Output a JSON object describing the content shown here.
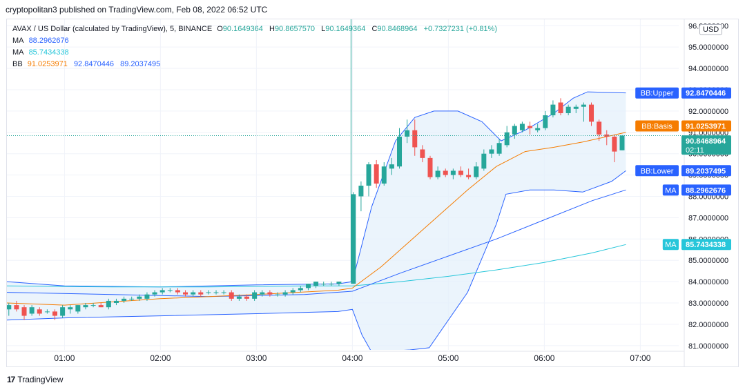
{
  "header": {
    "published_by": "cryptopolitan3 published on TradingView.com, Feb 08, 2022 06:52 UTC"
  },
  "legend": {
    "symbol": "AVAX / US Dollar (calculated by TradingView), 5, BINANCE",
    "o_label": "O",
    "o": "90.1649364",
    "h_label": "H",
    "h": "90.8657570",
    "l_label": "L",
    "l": "90.1649364",
    "c_label": "C",
    "c": "90.8468964",
    "change": "+0.7327231 (+0.81%)",
    "ma1_label": "MA",
    "ma1": "88.2962676",
    "ma2_label": "MA",
    "ma2": "85.7434338",
    "bb_label": "BB",
    "bb_basis": "91.0253971",
    "bb_upper": "92.8470446",
    "bb_lower": "89.2037495"
  },
  "currency": "USD",
  "footer": {
    "logo": "17",
    "brand": "TradingView"
  },
  "colors": {
    "up": "#26a69a",
    "down": "#ef5350",
    "bb_line": "#2962ff",
    "bb_fill": "#e3f0fb",
    "basis": "#f57c00",
    "ma1": "#2962ff",
    "ma2": "#26c6da",
    "cursor": "#26a69a",
    "grid": "#f0f3fa"
  },
  "chart_data": {
    "type": "candlestick",
    "y_range": [
      80.8,
      96.3
    ],
    "y_ticks": [
      "81.0000000",
      "82.0000000",
      "83.0000000",
      "84.0000000",
      "85.0000000",
      "86.0000000",
      "87.0000000",
      "88.0000000",
      "89.0000000",
      "90.0000000",
      "91.0000000",
      "92.0000000",
      "93.0000000",
      "94.0000000",
      "95.0000000",
      "96.0000000"
    ],
    "x_ticks": [
      {
        "label": "01:00",
        "t": 1.0
      },
      {
        "label": "02:00",
        "t": 2.0
      },
      {
        "label": "03:00",
        "t": 3.0
      },
      {
        "label": "04:00",
        "t": 4.0
      },
      {
        "label": "05:00",
        "t": 5.0
      },
      {
        "label": "06:00",
        "t": 6.0
      },
      {
        "label": "07:00",
        "t": 7.0
      }
    ],
    "x_range": [
      0.4,
      7.4
    ],
    "vertical_cursor_t": 4.0,
    "last_price": 90.8469,
    "candles": [
      {
        "t": 0.42,
        "o": 82.7,
        "h": 83.0,
        "l": 82.4,
        "c": 82.9
      },
      {
        "t": 0.5,
        "o": 82.9,
        "h": 83.1,
        "l": 82.6,
        "c": 82.7
      },
      {
        "t": 0.58,
        "o": 82.8,
        "h": 82.9,
        "l": 82.2,
        "c": 82.4
      },
      {
        "t": 0.66,
        "o": 82.5,
        "h": 82.9,
        "l": 82.4,
        "c": 82.8
      },
      {
        "t": 0.74,
        "o": 82.7,
        "h": 82.8,
        "l": 82.4,
        "c": 82.5
      },
      {
        "t": 0.82,
        "o": 82.6,
        "h": 82.7,
        "l": 82.5,
        "c": 82.6
      },
      {
        "t": 0.9,
        "o": 82.6,
        "h": 82.7,
        "l": 82.2,
        "c": 82.4
      },
      {
        "t": 0.98,
        "o": 82.4,
        "h": 82.9,
        "l": 82.3,
        "c": 82.8
      },
      {
        "t": 1.06,
        "o": 82.7,
        "h": 82.9,
        "l": 82.5,
        "c": 82.8
      },
      {
        "t": 1.14,
        "o": 82.6,
        "h": 82.9,
        "l": 82.5,
        "c": 82.9
      },
      {
        "t": 1.22,
        "o": 82.8,
        "h": 83.0,
        "l": 82.7,
        "c": 82.9
      },
      {
        "t": 1.3,
        "o": 82.9,
        "h": 83.0,
        "l": 82.8,
        "c": 82.9
      },
      {
        "t": 1.38,
        "o": 82.9,
        "h": 83.0,
        "l": 82.8,
        "c": 82.8
      },
      {
        "t": 1.46,
        "o": 82.8,
        "h": 83.2,
        "l": 82.7,
        "c": 83.1
      },
      {
        "t": 1.54,
        "o": 83.0,
        "h": 83.2,
        "l": 82.9,
        "c": 83.1
      },
      {
        "t": 1.62,
        "o": 83.1,
        "h": 83.3,
        "l": 83.0,
        "c": 83.2
      },
      {
        "t": 1.7,
        "o": 83.2,
        "h": 83.3,
        "l": 83.1,
        "c": 83.2
      },
      {
        "t": 1.78,
        "o": 83.2,
        "h": 83.4,
        "l": 83.1,
        "c": 83.3
      },
      {
        "t": 1.86,
        "o": 83.2,
        "h": 83.5,
        "l": 83.1,
        "c": 83.4
      },
      {
        "t": 1.94,
        "o": 83.4,
        "h": 83.6,
        "l": 83.3,
        "c": 83.5
      },
      {
        "t": 2.02,
        "o": 83.5,
        "h": 83.7,
        "l": 83.4,
        "c": 83.6
      },
      {
        "t": 2.1,
        "o": 83.6,
        "h": 83.7,
        "l": 83.5,
        "c": 83.6
      },
      {
        "t": 2.18,
        "o": 83.6,
        "h": 83.7,
        "l": 83.4,
        "c": 83.5
      },
      {
        "t": 2.26,
        "o": 83.5,
        "h": 83.6,
        "l": 83.3,
        "c": 83.4
      },
      {
        "t": 2.34,
        "o": 83.4,
        "h": 83.6,
        "l": 83.3,
        "c": 83.5
      },
      {
        "t": 2.42,
        "o": 83.5,
        "h": 83.6,
        "l": 83.3,
        "c": 83.4
      },
      {
        "t": 2.5,
        "o": 83.5,
        "h": 83.6,
        "l": 83.4,
        "c": 83.5
      },
      {
        "t": 2.58,
        "o": 83.5,
        "h": 83.6,
        "l": 83.4,
        "c": 83.5
      },
      {
        "t": 2.66,
        "o": 83.5,
        "h": 83.6,
        "l": 83.4,
        "c": 83.5
      },
      {
        "t": 2.74,
        "o": 83.5,
        "h": 83.6,
        "l": 83.1,
        "c": 83.2
      },
      {
        "t": 2.82,
        "o": 83.2,
        "h": 83.4,
        "l": 83.1,
        "c": 83.3
      },
      {
        "t": 2.9,
        "o": 83.3,
        "h": 83.4,
        "l": 83.1,
        "c": 83.2
      },
      {
        "t": 2.98,
        "o": 83.2,
        "h": 83.6,
        "l": 83.1,
        "c": 83.5
      },
      {
        "t": 3.06,
        "o": 83.4,
        "h": 83.6,
        "l": 83.3,
        "c": 83.5
      },
      {
        "t": 3.14,
        "o": 83.5,
        "h": 83.6,
        "l": 83.3,
        "c": 83.4
      },
      {
        "t": 3.22,
        "o": 83.4,
        "h": 83.5,
        "l": 83.3,
        "c": 83.4
      },
      {
        "t": 3.3,
        "o": 83.4,
        "h": 83.6,
        "l": 83.3,
        "c": 83.5
      },
      {
        "t": 3.38,
        "o": 83.5,
        "h": 83.7,
        "l": 83.4,
        "c": 83.6
      },
      {
        "t": 3.46,
        "o": 83.6,
        "h": 83.8,
        "l": 83.5,
        "c": 83.7
      },
      {
        "t": 3.54,
        "o": 83.7,
        "h": 83.9,
        "l": 83.6,
        "c": 83.9
      },
      {
        "t": 3.62,
        "o": 83.8,
        "h": 84.0,
        "l": 83.7,
        "c": 84.0
      },
      {
        "t": 3.7,
        "o": 83.9,
        "h": 84.0,
        "l": 83.8,
        "c": 83.9
      },
      {
        "t": 3.78,
        "o": 83.9,
        "h": 84.0,
        "l": 83.8,
        "c": 83.9
      },
      {
        "t": 3.86,
        "o": 83.9,
        "h": 84.0,
        "l": 83.8,
        "c": 84.0
      },
      {
        "t": 4.01,
        "o": 83.9,
        "h": 88.2,
        "l": 83.9,
        "c": 88.1
      },
      {
        "t": 4.09,
        "o": 88.0,
        "h": 88.7,
        "l": 87.3,
        "c": 88.5
      },
      {
        "t": 4.17,
        "o": 88.5,
        "h": 89.6,
        "l": 88.0,
        "c": 89.5
      },
      {
        "t": 4.25,
        "o": 89.5,
        "h": 89.7,
        "l": 88.4,
        "c": 88.6
      },
      {
        "t": 4.33,
        "o": 88.6,
        "h": 89.6,
        "l": 88.5,
        "c": 89.4
      },
      {
        "t": 4.41,
        "o": 89.3,
        "h": 89.8,
        "l": 89.0,
        "c": 89.5
      },
      {
        "t": 4.49,
        "o": 89.4,
        "h": 91.2,
        "l": 89.3,
        "c": 90.8
      },
      {
        "t": 4.57,
        "o": 90.8,
        "h": 91.6,
        "l": 90.5,
        "c": 91.1
      },
      {
        "t": 4.65,
        "o": 91.1,
        "h": 91.6,
        "l": 89.9,
        "c": 90.3
      },
      {
        "t": 4.73,
        "o": 90.2,
        "h": 90.4,
        "l": 89.6,
        "c": 89.8
      },
      {
        "t": 4.81,
        "o": 89.8,
        "h": 89.9,
        "l": 88.8,
        "c": 88.9
      },
      {
        "t": 4.89,
        "o": 88.9,
        "h": 89.4,
        "l": 88.8,
        "c": 89.2
      },
      {
        "t": 4.97,
        "o": 89.2,
        "h": 89.3,
        "l": 88.9,
        "c": 89.0
      },
      {
        "t": 5.05,
        "o": 89.0,
        "h": 89.3,
        "l": 88.8,
        "c": 89.2
      },
      {
        "t": 5.13,
        "o": 89.2,
        "h": 89.4,
        "l": 88.9,
        "c": 89.0
      },
      {
        "t": 5.21,
        "o": 89.0,
        "h": 89.3,
        "l": 88.8,
        "c": 88.9
      },
      {
        "t": 5.29,
        "o": 88.9,
        "h": 89.6,
        "l": 88.8,
        "c": 89.4
      },
      {
        "t": 5.37,
        "o": 89.3,
        "h": 90.2,
        "l": 89.2,
        "c": 90.0
      },
      {
        "t": 5.45,
        "o": 90.0,
        "h": 90.4,
        "l": 89.8,
        "c": 90.2
      },
      {
        "t": 5.53,
        "o": 90.0,
        "h": 90.7,
        "l": 89.9,
        "c": 90.5
      },
      {
        "t": 5.61,
        "o": 90.4,
        "h": 91.3,
        "l": 90.3,
        "c": 91.0
      },
      {
        "t": 5.69,
        "o": 90.9,
        "h": 91.4,
        "l": 90.7,
        "c": 91.3
      },
      {
        "t": 5.77,
        "o": 91.1,
        "h": 91.5,
        "l": 91.0,
        "c": 91.4
      },
      {
        "t": 5.85,
        "o": 91.3,
        "h": 91.5,
        "l": 90.9,
        "c": 91.2
      },
      {
        "t": 5.93,
        "o": 91.1,
        "h": 91.4,
        "l": 91.0,
        "c": 91.2
      },
      {
        "t": 6.01,
        "o": 91.2,
        "h": 92.0,
        "l": 91.1,
        "c": 91.8
      },
      {
        "t": 6.09,
        "o": 91.8,
        "h": 92.5,
        "l": 91.7,
        "c": 92.3
      },
      {
        "t": 6.17,
        "o": 92.4,
        "h": 92.6,
        "l": 91.8,
        "c": 91.9
      },
      {
        "t": 6.25,
        "o": 91.9,
        "h": 92.3,
        "l": 91.8,
        "c": 92.2
      },
      {
        "t": 6.33,
        "o": 92.1,
        "h": 92.3,
        "l": 91.9,
        "c": 92.2
      },
      {
        "t": 6.41,
        "o": 92.2,
        "h": 92.4,
        "l": 91.5,
        "c": 92.3
      },
      {
        "t": 6.49,
        "o": 92.3,
        "h": 92.4,
        "l": 91.3,
        "c": 91.5
      },
      {
        "t": 6.57,
        "o": 91.5,
        "h": 91.6,
        "l": 90.6,
        "c": 90.9
      },
      {
        "t": 6.65,
        "o": 90.9,
        "h": 91.1,
        "l": 90.4,
        "c": 90.8
      },
      {
        "t": 6.73,
        "o": 90.8,
        "h": 90.9,
        "l": 89.6,
        "c": 90.1
      },
      {
        "t": 6.81,
        "o": 90.16,
        "h": 90.87,
        "l": 90.16,
        "c": 90.85
      }
    ],
    "bb_upper": [
      [
        0.4,
        84.0
      ],
      [
        1.0,
        83.8
      ],
      [
        2.0,
        83.75
      ],
      [
        3.0,
        83.85
      ],
      [
        3.85,
        83.9
      ],
      [
        4.0,
        84.0
      ],
      [
        4.2,
        87.5
      ],
      [
        4.45,
        90.6
      ],
      [
        4.65,
        91.7
      ],
      [
        4.85,
        92.0
      ],
      [
        5.1,
        92.0
      ],
      [
        5.35,
        91.5
      ],
      [
        5.55,
        90.6
      ],
      [
        5.8,
        91.1
      ],
      [
        6.1,
        91.9
      ],
      [
        6.3,
        92.6
      ],
      [
        6.45,
        92.9
      ],
      [
        6.85,
        92.85
      ]
    ],
    "bb_lower": [
      [
        0.4,
        82.2
      ],
      [
        1.0,
        82.3
      ],
      [
        2.0,
        82.4
      ],
      [
        3.0,
        82.5
      ],
      [
        3.85,
        82.6
      ],
      [
        4.0,
        82.7
      ],
      [
        4.1,
        81.5
      ],
      [
        4.2,
        80.7
      ],
      [
        4.6,
        80.8
      ],
      [
        4.8,
        80.9
      ],
      [
        5.2,
        83.5
      ],
      [
        5.5,
        86.7
      ],
      [
        5.6,
        88.1
      ],
      [
        5.85,
        88.3
      ],
      [
        6.1,
        88.3
      ],
      [
        6.4,
        88.2
      ],
      [
        6.7,
        88.7
      ],
      [
        6.85,
        89.2
      ]
    ],
    "bb_basis": [
      [
        0.4,
        83.0
      ],
      [
        1.0,
        82.9
      ],
      [
        2.0,
        83.2
      ],
      [
        3.0,
        83.4
      ],
      [
        3.85,
        83.6
      ],
      [
        4.0,
        83.7
      ],
      [
        4.3,
        84.7
      ],
      [
        4.6,
        85.9
      ],
      [
        4.9,
        87.1
      ],
      [
        5.2,
        88.3
      ],
      [
        5.5,
        89.4
      ],
      [
        5.8,
        90.1
      ],
      [
        6.1,
        90.3
      ],
      [
        6.4,
        90.55
      ],
      [
        6.85,
        91.0
      ]
    ],
    "ma1": [
      [
        0.4,
        83.5
      ],
      [
        1.5,
        83.4
      ],
      [
        2.5,
        83.3
      ],
      [
        3.5,
        83.4
      ],
      [
        4.0,
        83.55
      ],
      [
        4.5,
        84.4
      ],
      [
        5.0,
        85.2
      ],
      [
        5.5,
        86.0
      ],
      [
        6.0,
        86.9
      ],
      [
        6.5,
        87.8
      ],
      [
        6.85,
        88.3
      ]
    ],
    "ma2": [
      [
        0.4,
        83.8
      ],
      [
        1.5,
        83.75
      ],
      [
        2.5,
        83.75
      ],
      [
        3.5,
        83.8
      ],
      [
        4.0,
        83.8
      ],
      [
        4.5,
        84.0
      ],
      [
        5.0,
        84.25
      ],
      [
        5.5,
        84.55
      ],
      [
        6.0,
        84.9
      ],
      [
        6.5,
        85.35
      ],
      [
        6.85,
        85.74
      ]
    ],
    "tags": [
      {
        "label": "BB:Upper",
        "value": "92.8470446",
        "price": 92.8470446,
        "color": "#2962ff"
      },
      {
        "label": "BB:Basis",
        "value": "91.0253971",
        "price": 91.3,
        "color": "#f57c00"
      },
      {
        "label": "",
        "value": "90.8468964",
        "sub": "02:11",
        "price": 90.6,
        "color": "#26a69a"
      },
      {
        "label": "BB:Lower",
        "value": "89.2037495",
        "price": 89.2037495,
        "color": "#2962ff"
      },
      {
        "label": "MA",
        "value": "88.2962676",
        "price": 88.2962676,
        "color": "#2962ff"
      },
      {
        "label": "MA",
        "value": "85.7434338",
        "price": 85.7434338,
        "color": "#26c6da"
      }
    ]
  }
}
